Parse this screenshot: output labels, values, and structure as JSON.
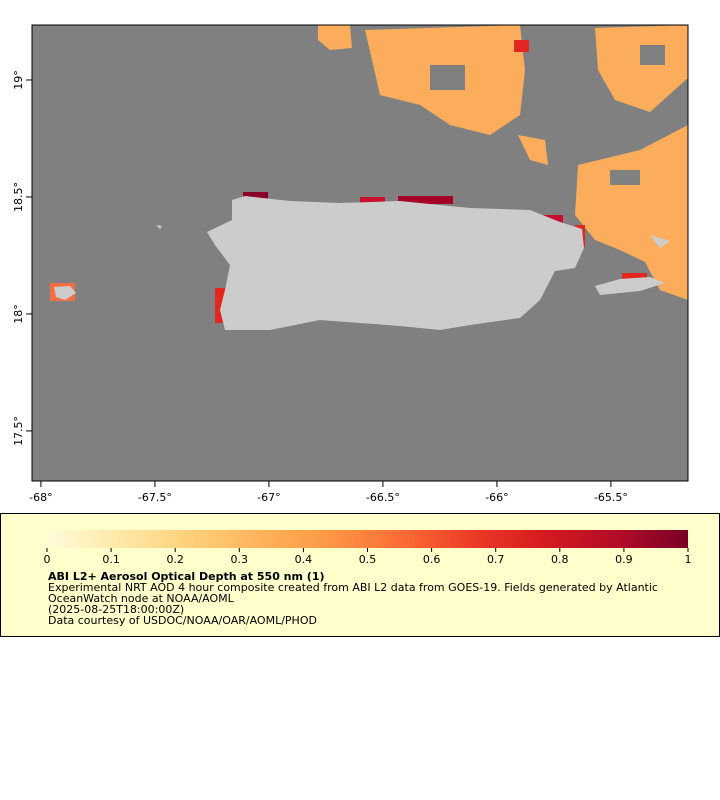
{
  "chart_data": {
    "type": "map",
    "xlim": [
      -68.039,
      -65.162
    ],
    "ylim": [
      17.286,
      19.235
    ],
    "xticks": [
      {
        "value": -68,
        "label": "-68°"
      },
      {
        "value": -67.5,
        "label": "-67.5°"
      },
      {
        "value": -67,
        "label": "-67°"
      },
      {
        "value": -66.5,
        "label": "-66.5°"
      },
      {
        "value": -66,
        "label": "-66°"
      },
      {
        "value": -65.5,
        "label": "-65.5°"
      }
    ],
    "yticks": [
      {
        "value": 17.5,
        "label": "17.5°"
      },
      {
        "value": 18,
        "label": "18°"
      },
      {
        "value": 18.5,
        "label": "18.5°"
      },
      {
        "value": 19,
        "label": "19°"
      }
    ],
    "colorbar": {
      "lim": [
        0,
        1
      ],
      "ticks": [
        0,
        0.1,
        0.2,
        0.3,
        0.4,
        0.5,
        0.6,
        0.7,
        0.8,
        0.9,
        1
      ],
      "colors": [
        "#fffbd9",
        "#fee9a8",
        "#fed17a",
        "#fdb35a",
        "#fc9644",
        "#fa6b35",
        "#ec3a25",
        "#d41a1f",
        "#b30c27",
        "#7a0026"
      ]
    },
    "legend": {
      "title": "ABI L2+ Aerosol Optical Depth at 550 nm (1)",
      "lines": [
        "Experimental NRT AOD 4 hour composite created from ABI L2 data from GOES-19. Fields generated by Atlantic",
        "OceanWatch node at NOAA/AOML",
        "(2025-08-25T18:00:00Z)",
        "Data courtesy of USDOC/NOAA/OAR/AOML/PHOD"
      ]
    }
  }
}
